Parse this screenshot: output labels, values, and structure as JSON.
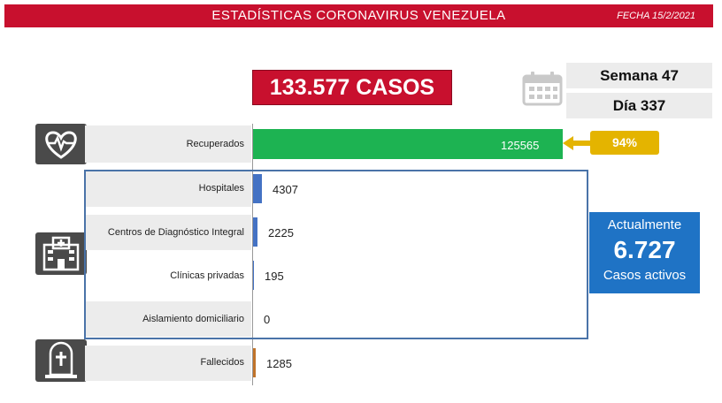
{
  "header": {
    "title": "ESTADÍSTICAS CORONAVIRUS VENEZUELA",
    "date": "FECHA 15/2/2021"
  },
  "summary": {
    "total_cases": "133.577 CASOS",
    "week": "Semana 47",
    "day": "Día 337"
  },
  "recovered_pct": "94%",
  "active": {
    "line1": "Actualmente",
    "value": "6.727",
    "line2": "Casos activos"
  },
  "icons": {
    "recovered": "heart-pulse-icon",
    "hospital": "hospital-icon",
    "deceased": "tombstone-icon",
    "calendar": "calendar-icon"
  },
  "colors": {
    "header": "#c8102e",
    "recovered": "#1db352",
    "hospital": "#4472c4",
    "deceased": "#c0732a",
    "active": "#1f73c5",
    "percent_badge": "#e4b400"
  },
  "chart_data": {
    "type": "bar",
    "orientation": "horizontal",
    "categories": [
      "Recuperados",
      "Hospitales",
      "Centros de Diagnóstico Integral",
      "Clínicas privadas",
      "Aislamiento domiciliario",
      "Fallecidos"
    ],
    "values": [
      125565,
      4307,
      2225,
      195,
      0,
      1285
    ],
    "value_labels": [
      "125565",
      "4307",
      "2225",
      "195",
      "0",
      "1285"
    ],
    "colors": [
      "#1db352",
      "#4472c4",
      "#4472c4",
      "#4472c4",
      "#4472c4",
      "#c0732a"
    ]
  }
}
